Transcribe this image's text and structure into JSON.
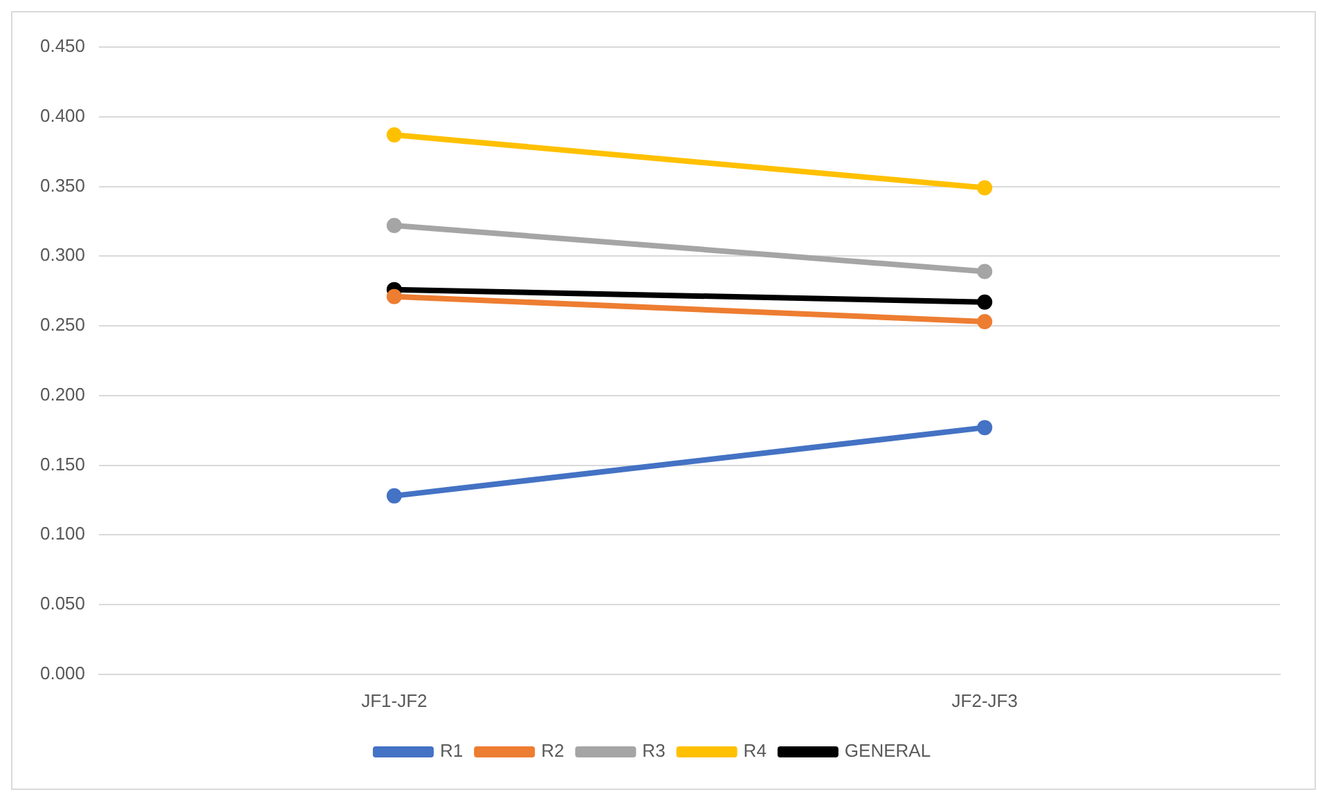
{
  "chart_data": {
    "type": "line",
    "categories": [
      "JF1-JF2",
      "JF2-JF3"
    ],
    "series": [
      {
        "name": "R1",
        "color": "#4472c4",
        "values": [
          0.128,
          0.177
        ]
      },
      {
        "name": "R2",
        "color": "#ed7d31",
        "values": [
          0.271,
          0.253
        ]
      },
      {
        "name": "R3",
        "color": "#a5a5a5",
        "values": [
          0.322,
          0.289
        ]
      },
      {
        "name": "R4",
        "color": "#ffc000",
        "values": [
          0.387,
          0.349
        ]
      },
      {
        "name": "GENERAL",
        "color": "#000000",
        "values": [
          0.276,
          0.267
        ]
      }
    ],
    "ylim": [
      0,
      0.45
    ],
    "yticks": [
      {
        "value": 0,
        "label": "0.000"
      },
      {
        "value": 0.05,
        "label": "0.050"
      },
      {
        "value": 0.1,
        "label": "0.100"
      },
      {
        "value": 0.15,
        "label": "0.150"
      },
      {
        "value": 0.2,
        "label": "0.200"
      },
      {
        "value": 0.25,
        "label": "0.250"
      },
      {
        "value": 0.3,
        "label": "0.300"
      },
      {
        "value": 0.35,
        "label": "0.350"
      },
      {
        "value": 0.4,
        "label": "0.400"
      },
      {
        "value": 0.45,
        "label": "0.450"
      }
    ],
    "grid": "y",
    "legend": "bottom",
    "marker": "circle",
    "line_style": "solid"
  }
}
